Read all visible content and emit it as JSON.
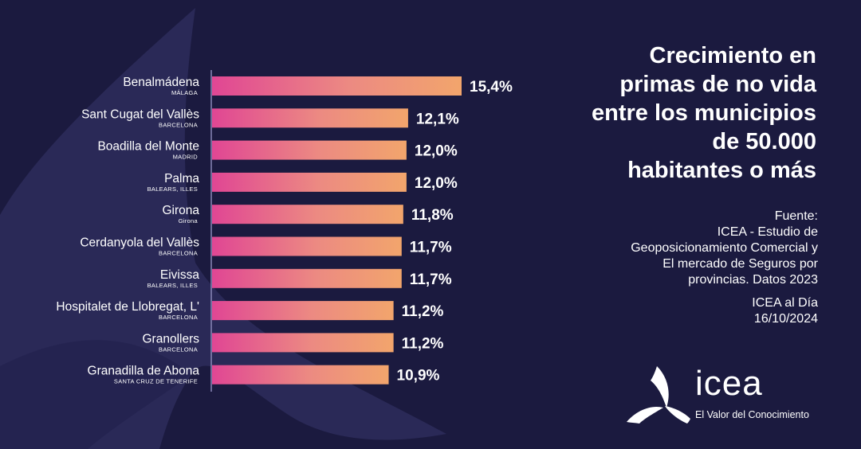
{
  "chart_data": {
    "type": "bar",
    "orientation": "horizontal",
    "title": "Crecimiento en primas de no vida entre los municipios de 50.000 habitantes o más",
    "categories": [
      {
        "name": "Benalmádena",
        "province": "MÁLAGA",
        "value": 15.4,
        "label": "15,4%"
      },
      {
        "name": "Sant Cugat del Vallès",
        "province": "BARCELONA",
        "value": 12.1,
        "label": "12,1%"
      },
      {
        "name": "Boadilla del Monte",
        "province": "MADRID",
        "value": 12.0,
        "label": "12,0%"
      },
      {
        "name": "Palma",
        "province": "BALEARS, ILLES",
        "value": 12.0,
        "label": "12,0%"
      },
      {
        "name": "Girona",
        "province": "Girona",
        "value": 11.8,
        "label": "11,8%"
      },
      {
        "name": "Cerdanyola del Vallès",
        "province": "BARCELONA",
        "value": 11.7,
        "label": "11,7%"
      },
      {
        "name": "Eivissa",
        "province": "BALEARS, ILLES",
        "value": 11.7,
        "label": "11,7%"
      },
      {
        "name": "Hospitalet de Llobregat, L'",
        "province": "BARCELONA",
        "value": 11.2,
        "label": "11,2%"
      },
      {
        "name": "Granollers",
        "province": "BARCELONA",
        "value": 11.2,
        "label": "11,2%"
      },
      {
        "name": "Granadilla de Abona",
        "province": "SANTA CRUZ DE TENERIFE",
        "value": 10.9,
        "label": "10,9%"
      }
    ],
    "xlim": [
      0,
      15.4
    ],
    "gradient": [
      "#e04694",
      "#f2a56c"
    ]
  },
  "title_lines": [
    "Crecimiento en",
    "primas de no vida",
    "entre los municipios",
    "de 50.000",
    "habitantes o más"
  ],
  "source": {
    "lines": [
      "Fuente:",
      "ICEA - Estudio de",
      "Geoposicionamiento Comercial y",
      "El mercado de Seguros por",
      "provincias. Datos 2023"
    ],
    "publication": "ICEA al Día",
    "date": "16/10/2024"
  },
  "logo": {
    "word": "icea",
    "tagline": "El Valor del Conocimiento"
  },
  "colors": {
    "background": "#1b1a3f",
    "shape": "#2b2a5a",
    "axis": "#8a88b8"
  }
}
